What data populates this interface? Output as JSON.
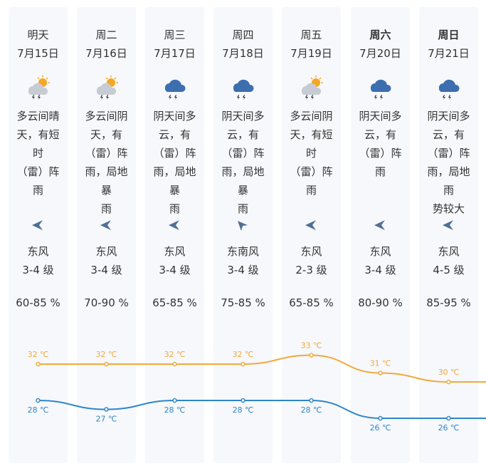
{
  "colors": {
    "high": "#f2a93b",
    "low": "#2f86c9",
    "cloud": "#3d6fb0"
  },
  "days": [
    {
      "day": "明天",
      "date": "7月15日",
      "icon": "partly-cloudy-thunder-rain-icon",
      "desc": [
        "多云间晴",
        "天，有短时",
        "（雷）阵雨"
      ],
      "wind_dir": "east-wind-arrow-icon",
      "wind": "东风",
      "level": "3-4 级",
      "humidity": "60-85 %",
      "high": "32 ℃",
      "low": "28 ℃",
      "bold": false
    },
    {
      "day": "周二",
      "date": "7月16日",
      "icon": "partly-cloudy-thunder-rain-icon",
      "desc": [
        "多云间阴",
        "天，有",
        "（雷）阵",
        "雨，局地暴",
        "雨"
      ],
      "wind_dir": "east-wind-arrow-icon",
      "wind": "东风",
      "level": "3-4 级",
      "humidity": "70-90 %",
      "high": "32 ℃",
      "low": "27 ℃",
      "bold": false
    },
    {
      "day": "周三",
      "date": "7月17日",
      "icon": "overcast-thunder-rain-icon",
      "desc": [
        "阴天间多",
        "云，有",
        "（雷）阵",
        "雨，局地暴",
        "雨"
      ],
      "wind_dir": "east-wind-arrow-icon",
      "wind": "东风",
      "level": "3-4 级",
      "humidity": "65-85 %",
      "high": "32 ℃",
      "low": "28 ℃",
      "bold": false
    },
    {
      "day": "周四",
      "date": "7月18日",
      "icon": "overcast-thunder-rain-icon",
      "desc": [
        "阴天间多",
        "云，有",
        "（雷）阵",
        "雨，局地暴",
        "雨"
      ],
      "wind_dir": "southeast-wind-arrow-icon",
      "wind": "东南风",
      "level": "3-4 级",
      "humidity": "75-85 %",
      "high": "32 ℃",
      "low": "28 ℃",
      "bold": false
    },
    {
      "day": "周五",
      "date": "7月19日",
      "icon": "partly-cloudy-thunder-rain-icon",
      "desc": [
        "多云间阴",
        "天，有短时",
        "（雷）阵雨"
      ],
      "wind_dir": "east-wind-arrow-icon",
      "wind": "东风",
      "level": "2-3 级",
      "humidity": "65-85 %",
      "high": "33 ℃",
      "low": "28 ℃",
      "bold": false
    },
    {
      "day": "周六",
      "date": "7月20日",
      "icon": "overcast-thunder-rain-icon",
      "desc": [
        "阴天间多",
        "云，有",
        "（雷）阵雨"
      ],
      "wind_dir": "east-wind-arrow-icon",
      "wind": "东风",
      "level": "3-4 级",
      "humidity": "80-90 %",
      "high": "31 ℃",
      "low": "26 ℃",
      "bold": true
    },
    {
      "day": "周日",
      "date": "7月21日",
      "icon": "overcast-thunder-rain-icon",
      "desc": [
        "阴天间多",
        "云，有",
        "（雷）阵",
        "雨，局地雨",
        "势较大"
      ],
      "wind_dir": "east-wind-arrow-icon",
      "wind": "东风",
      "level": "4-5 级",
      "humidity": "85-95 %",
      "high": "30 ℃",
      "low": "26 ℃",
      "bold": true
    }
  ],
  "chart_data": {
    "type": "line",
    "categories": [
      "7月15日",
      "7月16日",
      "7月17日",
      "7月18日",
      "7月19日",
      "7月20日",
      "7月21日"
    ],
    "series": [
      {
        "key": "high",
        "values": [
          32,
          32,
          32,
          32,
          33,
          31,
          30
        ]
      },
      {
        "key": "low",
        "values": [
          28,
          27,
          28,
          28,
          28,
          26,
          26
        ]
      }
    ]
  }
}
